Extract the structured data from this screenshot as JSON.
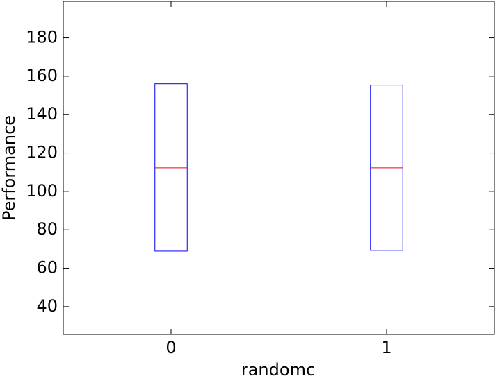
{
  "chart_data": {
    "type": "box",
    "x_label": "randomc",
    "y_label": "Performance",
    "categories": [
      "0",
      "1"
    ],
    "q1": [
      68.9,
      69.3
    ],
    "median": [
      112.3,
      112.3
    ],
    "q3": [
      156.1,
      155.4
    ],
    "box_color": "#0000ff",
    "median_color": "#ff0000",
    "ylim": [
      25.5,
      199
    ],
    "yticks": [
      40,
      60,
      80,
      100,
      120,
      140,
      160,
      180
    ]
  }
}
